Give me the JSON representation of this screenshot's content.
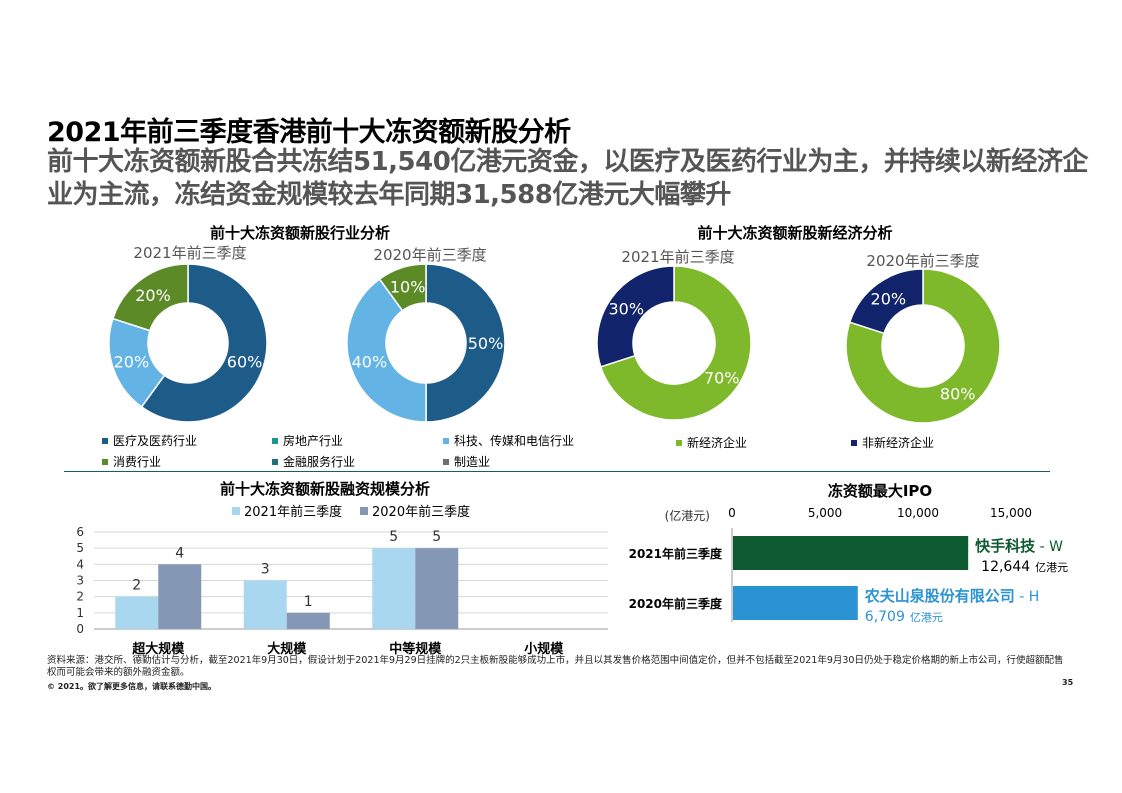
{
  "header": {
    "title": "2021年前三季度香港前十大冻资额新股分析",
    "subtitle": "前十大冻资额新股合共冻结51,540亿港元资金，以医疗及医药行业为主，并持续以新经济企业为主流，冻结资金规模较去年同期31,588亿港元大幅攀升"
  },
  "colors": {
    "healthcare": "#1d5b88",
    "property": "#18968f",
    "tech": "#63b3e5",
    "consumer": "#5b8a26",
    "finance": "#1f6f7d",
    "manufacturing": "#6f6f6f",
    "new_economy": "#7eb82b",
    "non_new_economy": "#10236b",
    "bar2021": "#a9d7f0",
    "bar2020": "#8497b5",
    "ipo2021": "#0e5a31",
    "ipo2020": "#2b93d4"
  },
  "industry_section": {
    "title": "前十大冻资额新股行业分析",
    "legend": [
      {
        "label": "医疗及医药行业",
        "color": "#1d5b88"
      },
      {
        "label": "房地产行业",
        "color": "#18968f"
      },
      {
        "label": "科技、传媒和电信行业",
        "color": "#63b3e5"
      },
      {
        "label": "消费行业",
        "color": "#5b8a26"
      },
      {
        "label": "金融服务行业",
        "color": "#1f6f7d"
      },
      {
        "label": "制造业",
        "color": "#6f6f6f"
      }
    ]
  },
  "economy_section": {
    "title": "前十大冻资额新股新经济分析",
    "legend": [
      {
        "label": "新经济企业",
        "color": "#7eb82b"
      },
      {
        "label": "非新经济企业",
        "color": "#10236b"
      }
    ]
  },
  "chart_data": [
    {
      "type": "pie",
      "title": "2021年前三季度",
      "group": "行业分析",
      "slices": [
        {
          "label": "医疗及医药行业",
          "value": 60,
          "text": "60%",
          "color": "#1d5b88",
          "text_color": "#ffffff"
        },
        {
          "label": "科技、传媒和电信行业",
          "value": 20,
          "text": "20%",
          "color": "#63b3e5",
          "text_color": "#ffffff"
        },
        {
          "label": "消费行业",
          "value": 20,
          "text": "20%",
          "color": "#5b8a26",
          "text_color": "#ffffff"
        }
      ]
    },
    {
      "type": "pie",
      "title": "2020年前三季度",
      "group": "行业分析",
      "slices": [
        {
          "label": "医疗及医药行业",
          "value": 50,
          "text": "50%",
          "color": "#1d5b88",
          "text_color": "#ffffff"
        },
        {
          "label": "科技、传媒和电信行业",
          "value": 40,
          "text": "40%",
          "color": "#63b3e5",
          "text_color": "#ffffff"
        },
        {
          "label": "消费行业",
          "value": 10,
          "text": "10%",
          "color": "#5b8a26",
          "text_color": "#ffffff"
        }
      ]
    },
    {
      "type": "pie",
      "title": "2021年前三季度",
      "group": "新经济分析",
      "slices": [
        {
          "label": "新经济企业",
          "value": 70,
          "text": "70%",
          "color": "#7eb82b",
          "text_color": "#ffffff"
        },
        {
          "label": "非新经济企业",
          "value": 30,
          "text": "30%",
          "color": "#10236b",
          "text_color": "#ffffff"
        }
      ]
    },
    {
      "type": "pie",
      "title": "2020年前三季度",
      "group": "新经济分析",
      "slices": [
        {
          "label": "新经济企业",
          "value": 80,
          "text": "80%",
          "color": "#7eb82b",
          "text_color": "#ffffff"
        },
        {
          "label": "非新经济企业",
          "value": 20,
          "text": "20%",
          "color": "#10236b",
          "text_color": "#ffffff"
        }
      ]
    },
    {
      "type": "bar",
      "title": "前十大冻资额新股融资规模分析",
      "categories": [
        "超大规模",
        "大规模",
        "中等规模",
        "小规模"
      ],
      "series": [
        {
          "name": "2021年前三季度",
          "values": [
            2,
            3,
            5,
            0
          ],
          "color": "#a9d7f0"
        },
        {
          "name": "2020年前三季度",
          "values": [
            4,
            1,
            5,
            0
          ],
          "color": "#8497b5"
        }
      ],
      "ylim": [
        0,
        6
      ],
      "yticks": [
        0,
        1,
        2,
        3,
        4,
        5,
        6
      ]
    },
    {
      "type": "bar",
      "orientation": "horizontal",
      "title": "冻资额最大IPO",
      "unit_label": "(亿港元)",
      "xticks": [
        "0",
        "5,000",
        "10,000",
        "15,000"
      ],
      "xlim": [
        0,
        15000
      ],
      "categories": [
        "2021年前三季度",
        "2020年前三季度"
      ],
      "values": [
        12644,
        6709
      ],
      "bars": [
        {
          "category": "2021年前三季度",
          "value": 12644,
          "company": "快手科技",
          "suffix": " - W",
          "value_text": "12,644",
          "unit": "亿港元",
          "color": "#0e5a31"
        },
        {
          "category": "2020年前三季度",
          "value": 6709,
          "company": "农夫山泉股份有限公司",
          "suffix": " - H",
          "value_text": "6,709",
          "unit": "亿港元",
          "color": "#2b93d4"
        }
      ]
    }
  ],
  "footer": {
    "note": "资料来源：港交所、德勤估计与分析，截至2021年9月30日，假设计划于2021年9月29日挂牌的2只主板新股能够成功上市，并且以其发售价格范围中间值定价，但并不包括截至2021年9月30日仍处于稳定价格期的新上市公司，行使超额配售权而可能会带来的额外融资金额。",
    "copyright": "© 2021。欲了解更多信息，请联系德勤中国。",
    "page": "35"
  }
}
